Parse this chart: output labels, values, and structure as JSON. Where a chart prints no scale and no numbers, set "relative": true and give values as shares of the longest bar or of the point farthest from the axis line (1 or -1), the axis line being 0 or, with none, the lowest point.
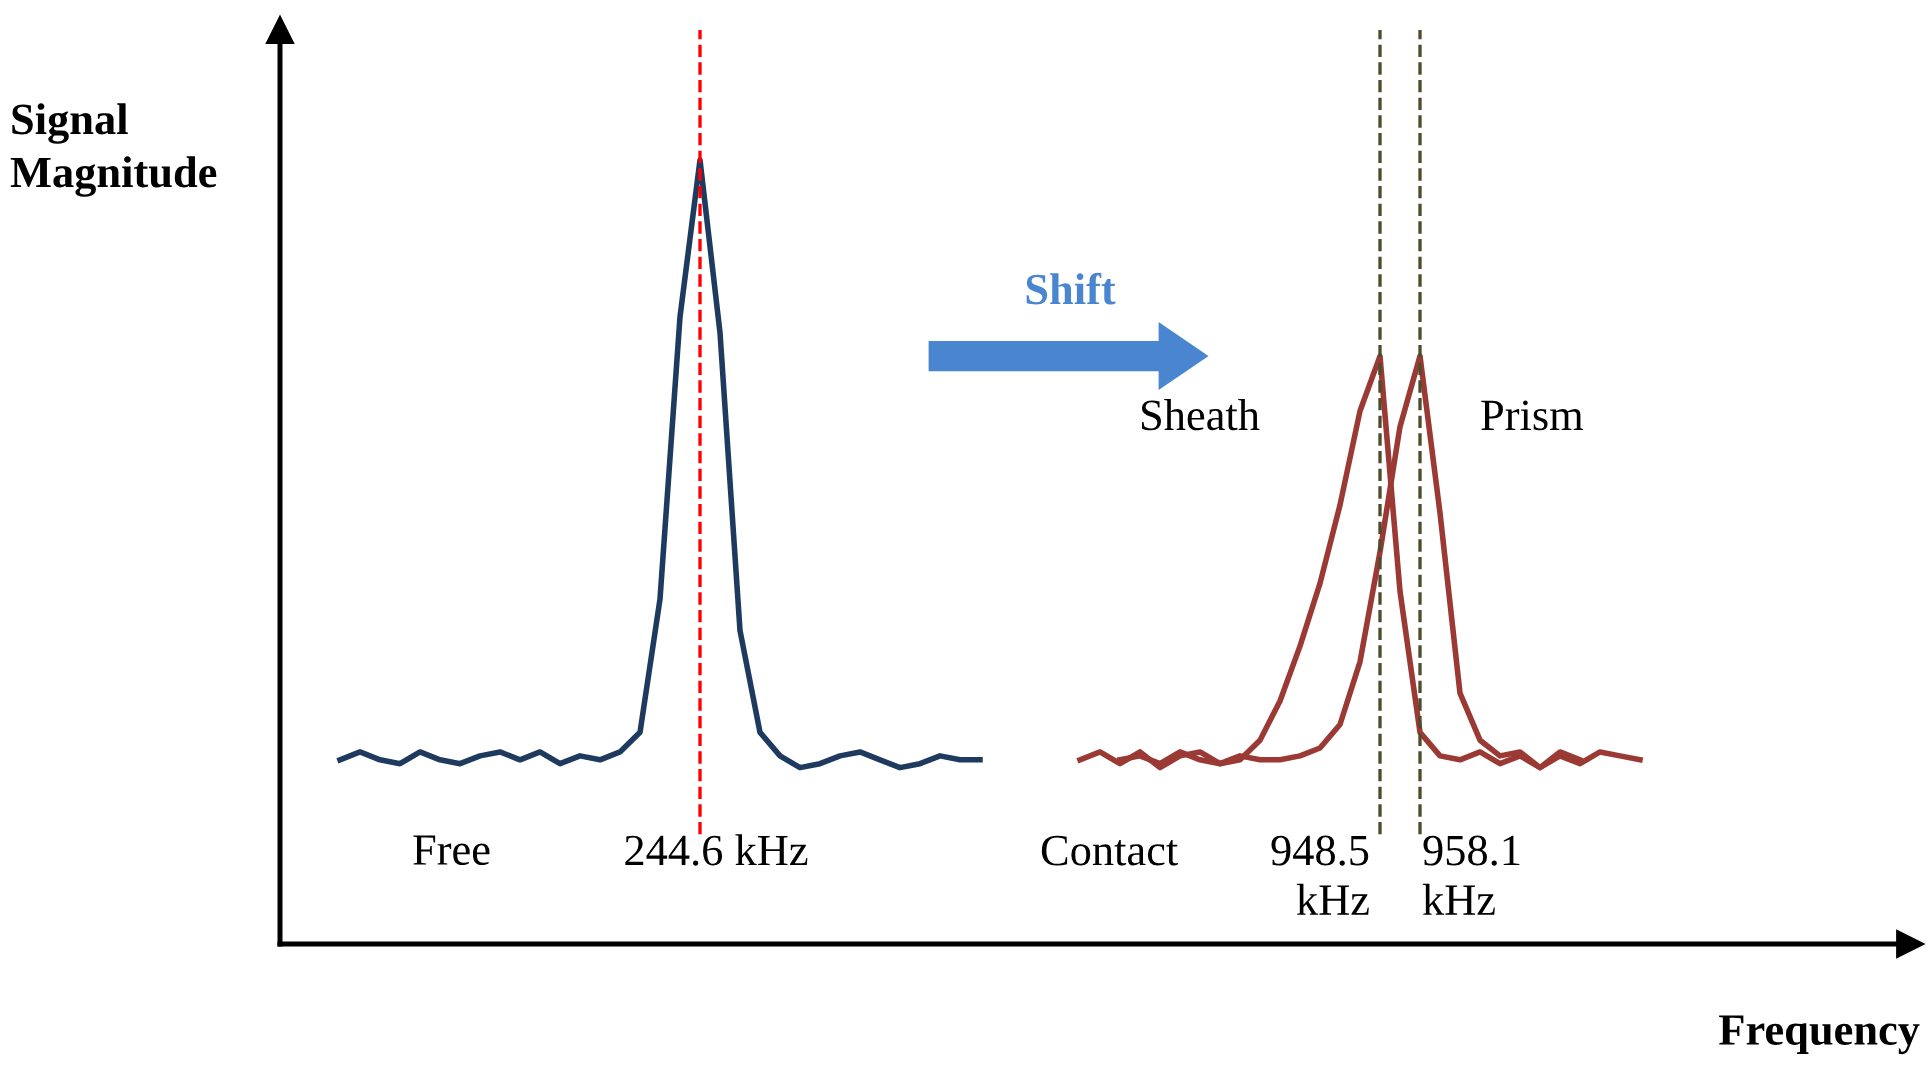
{
  "chart_data": {
    "type": "line",
    "relative": true,
    "xlabel": "Frequency",
    "ylabel": "Signal Magnitude",
    "categories": [
      null,
      null,
      null,
      null,
      null,
      null,
      null,
      null,
      null,
      null,
      null,
      null,
      null,
      null,
      null,
      null,
      null,
      null,
      null,
      null,
      null,
      null,
      null,
      null,
      null,
      null,
      null,
      null,
      null,
      null,
      null,
      null,
      null,
      null,
      null,
      null,
      null,
      null,
      null,
      null,
      null,
      null,
      null,
      null,
      null,
      null,
      null,
      null,
      null,
      null,
      null,
      null,
      null,
      null,
      null,
      null,
      null,
      null,
      null,
      null,
      null,
      null,
      null,
      null,
      null,
      null
    ],
    "series": [
      {
        "name": "Free",
        "color": "#1f3a5f",
        "values": [
          0.235,
          0.245,
          0.235,
          0.23,
          0.245,
          0.235,
          0.23,
          0.24,
          0.245,
          0.235,
          0.245,
          0.23,
          0.24,
          0.235,
          0.245,
          0.27,
          0.44,
          0.8,
          1,
          0.78,
          0.4,
          0.27,
          0.24,
          0.225,
          0.23,
          0.24,
          0.245,
          0.235,
          0.225,
          0.23,
          0.24,
          0.235,
          0.235,
          null,
          null,
          null,
          null,
          null,
          null,
          null,
          null,
          null,
          null,
          null,
          null,
          null,
          null,
          null,
          null,
          null,
          null,
          null,
          null,
          null,
          null,
          null,
          null,
          null,
          null,
          null,
          null,
          null,
          null,
          null,
          null,
          null
        ]
      },
      {
        "name": "Sheath",
        "color": "#9b3a35",
        "values": [
          null,
          null,
          null,
          null,
          null,
          null,
          null,
          null,
          null,
          null,
          null,
          null,
          null,
          null,
          null,
          null,
          null,
          null,
          null,
          null,
          null,
          null,
          null,
          null,
          null,
          null,
          null,
          null,
          null,
          null,
          null,
          null,
          null,
          null,
          null,
          null,
          null,
          0.235,
          0.245,
          0.23,
          0.245,
          0.225,
          0.24,
          0.245,
          0.23,
          0.235,
          0.26,
          0.31,
          0.38,
          0.46,
          0.56,
          0.68,
          0.75,
          0.45,
          0.27,
          0.24,
          0.235,
          0.245,
          0.23,
          0.24,
          0.225,
          0.245,
          0.235,
          null,
          null,
          null
        ]
      },
      {
        "name": "Prism",
        "color": "#9b3a35",
        "values": [
          null,
          null,
          null,
          null,
          null,
          null,
          null,
          null,
          null,
          null,
          null,
          null,
          null,
          null,
          null,
          null,
          null,
          null,
          null,
          null,
          null,
          null,
          null,
          null,
          null,
          null,
          null,
          null,
          null,
          null,
          null,
          null,
          null,
          null,
          null,
          null,
          null,
          null,
          null,
          0.235,
          0.24,
          0.23,
          0.245,
          0.235,
          0.23,
          0.24,
          0.235,
          0.235,
          0.24,
          0.25,
          0.28,
          0.36,
          0.5,
          0.66,
          0.75,
          0.55,
          0.32,
          0.26,
          0.24,
          0.245,
          0.225,
          0.24,
          0.23,
          0.245,
          0.24,
          0.235
        ]
      }
    ],
    "annotations": [
      "Shift",
      "Contact",
      "244.6 kHz",
      "948.5\nkHz",
      "958.1\nkHz"
    ],
    "legend": false
  }
}
